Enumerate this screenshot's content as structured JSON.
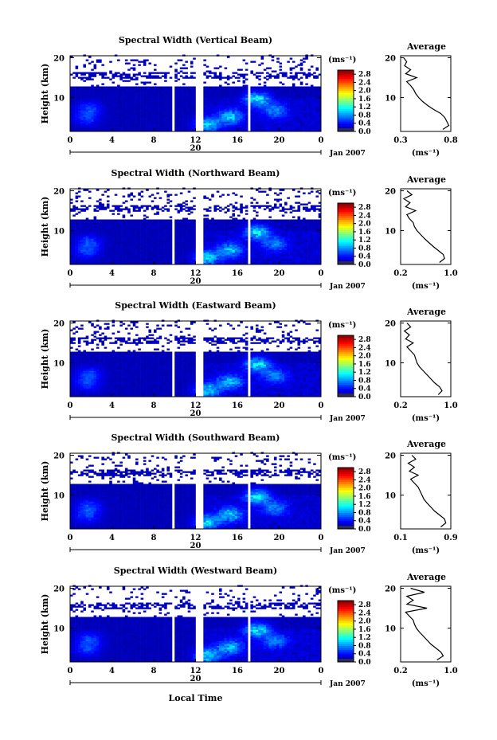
{
  "figure": {
    "xlabel": "Local Time",
    "date_label": "Jan 2007",
    "day_label": "20",
    "cbar_unit": "(ms⁻¹)",
    "avg_title": "Average",
    "avg_xlabel": "(ms⁻¹)"
  },
  "chart_data": [
    {
      "type": "heatmap",
      "title": "Spectral Width (Vertical Beam)",
      "ylabel": "Height (km)",
      "xlabel": "Local Time",
      "x_ticks": [
        "0",
        "4",
        "8",
        "12",
        "16",
        "20",
        "0"
      ],
      "xlim": [
        0,
        24
      ],
      "y_ticks": [
        "10",
        "20"
      ],
      "ylim": [
        1.5,
        20.5
      ],
      "colorbar": {
        "unit": "(ms⁻¹)",
        "ticks": [
          "0.0",
          "0.4",
          "0.8",
          "1.2",
          "1.6",
          "2.0",
          "2.4",
          "2.8"
        ],
        "range": [
          0,
          3.0
        ]
      },
      "data_gaps_hours": [
        [
          9.7,
          10.0
        ],
        [
          12.0,
          12.6
        ],
        [
          17.0,
          17.2
        ]
      ],
      "data_top_km": 12.5,
      "average_profile": {
        "title": "Average",
        "xlabel": "(ms⁻¹)",
        "x_ticks": [
          "0.3",
          "0.8"
        ],
        "xlim": [
          0.3,
          0.8
        ],
        "y_ticks": [
          "10",
          "20"
        ],
        "points": [
          [
            0.72,
            2.0
          ],
          [
            0.78,
            3.0
          ],
          [
            0.76,
            4.0
          ],
          [
            0.74,
            5.0
          ],
          [
            0.7,
            6.0
          ],
          [
            0.63,
            7.0
          ],
          [
            0.57,
            8.0
          ],
          [
            0.52,
            9.0
          ],
          [
            0.48,
            10.0
          ],
          [
            0.45,
            11.0
          ],
          [
            0.43,
            12.0
          ],
          [
            0.4,
            13.0
          ],
          [
            0.36,
            14.0
          ],
          [
            0.46,
            15.0
          ],
          [
            0.35,
            16.0
          ],
          [
            0.4,
            17.0
          ],
          [
            0.34,
            18.0
          ],
          [
            0.36,
            19.0
          ],
          [
            0.33,
            20.0
          ]
        ]
      }
    },
    {
      "type": "heatmap",
      "title": "Spectral Width (Northward Beam)",
      "ylabel": "Height (km)",
      "xlabel": "Local Time",
      "x_ticks": [
        "0",
        "4",
        "8",
        "12",
        "16",
        "20",
        "0"
      ],
      "xlim": [
        0,
        24
      ],
      "y_ticks": [
        "10",
        "20"
      ],
      "ylim": [
        1.5,
        20.5
      ],
      "colorbar": {
        "unit": "(ms⁻¹)",
        "ticks": [
          "0.0",
          "0.4",
          "0.8",
          "1.2",
          "1.6",
          "2.0",
          "2.4",
          "2.8"
        ],
        "range": [
          0,
          3.0
        ]
      },
      "data_gaps_hours": [
        [
          9.7,
          10.0
        ],
        [
          12.0,
          12.6
        ],
        [
          17.0,
          17.2
        ]
      ],
      "data_top_km": 12.5,
      "average_profile": {
        "title": "Average",
        "xlabel": "(ms⁻¹)",
        "x_ticks": [
          "0.2",
          "1.0"
        ],
        "xlim": [
          0.2,
          1.0
        ],
        "y_ticks": [
          "10",
          "20"
        ],
        "points": [
          [
            0.82,
            2.0
          ],
          [
            0.9,
            3.0
          ],
          [
            0.88,
            4.0
          ],
          [
            0.8,
            5.0
          ],
          [
            0.72,
            6.0
          ],
          [
            0.65,
            7.0
          ],
          [
            0.58,
            8.0
          ],
          [
            0.52,
            9.0
          ],
          [
            0.46,
            10.0
          ],
          [
            0.42,
            11.0
          ],
          [
            0.4,
            12.0
          ],
          [
            0.34,
            13.0
          ],
          [
            0.3,
            14.0
          ],
          [
            0.44,
            15.0
          ],
          [
            0.28,
            16.0
          ],
          [
            0.35,
            17.0
          ],
          [
            0.25,
            18.0
          ],
          [
            0.38,
            19.0
          ],
          [
            0.3,
            20.0
          ]
        ]
      }
    },
    {
      "type": "heatmap",
      "title": "Spectral Width (Eastward Beam)",
      "ylabel": "Height (km)",
      "xlabel": "Local Time",
      "x_ticks": [
        "0",
        "4",
        "8",
        "12",
        "16",
        "20",
        "0"
      ],
      "xlim": [
        0,
        24
      ],
      "y_ticks": [
        "10",
        "20"
      ],
      "ylim": [
        1.5,
        20.5
      ],
      "colorbar": {
        "unit": "(ms⁻¹)",
        "ticks": [
          "0.0",
          "0.4",
          "0.8",
          "1.2",
          "1.6",
          "2.0",
          "2.4",
          "2.8"
        ],
        "range": [
          0,
          3.0
        ]
      },
      "data_gaps_hours": [
        [
          9.7,
          10.0
        ],
        [
          12.0,
          12.6
        ],
        [
          17.0,
          17.2
        ]
      ],
      "data_top_km": 12.5,
      "average_profile": {
        "title": "Average",
        "xlabel": "(ms⁻¹)",
        "x_ticks": [
          "0.2",
          "1.0"
        ],
        "xlim": [
          0.2,
          1.0
        ],
        "y_ticks": [
          "10",
          "20"
        ],
        "points": [
          [
            0.8,
            2.0
          ],
          [
            0.86,
            3.0
          ],
          [
            0.82,
            4.0
          ],
          [
            0.74,
            5.0
          ],
          [
            0.68,
            6.0
          ],
          [
            0.62,
            7.0
          ],
          [
            0.56,
            8.0
          ],
          [
            0.5,
            9.0
          ],
          [
            0.46,
            10.0
          ],
          [
            0.44,
            11.0
          ],
          [
            0.42,
            12.0
          ],
          [
            0.36,
            13.0
          ],
          [
            0.3,
            14.0
          ],
          [
            0.4,
            15.0
          ],
          [
            0.28,
            16.0
          ],
          [
            0.34,
            17.0
          ],
          [
            0.26,
            18.0
          ],
          [
            0.36,
            19.0
          ],
          [
            0.3,
            20.0
          ]
        ]
      }
    },
    {
      "type": "heatmap",
      "title": "Spectral Width (Southward Beam)",
      "ylabel": "Height (km)",
      "xlabel": "Local Time",
      "x_ticks": [
        "0",
        "4",
        "8",
        "12",
        "16",
        "20",
        "0"
      ],
      "xlim": [
        0,
        24
      ],
      "y_ticks": [
        "10",
        "20"
      ],
      "ylim": [
        1.5,
        20.5
      ],
      "colorbar": {
        "unit": "(ms⁻¹)",
        "ticks": [
          "0.0",
          "0.4",
          "0.8",
          "1.2",
          "1.6",
          "2.0",
          "2.4",
          "2.8"
        ],
        "range": [
          0,
          3.0
        ]
      },
      "data_gaps_hours": [
        [
          9.7,
          10.0
        ],
        [
          12.0,
          12.6
        ],
        [
          17.0,
          17.2
        ]
      ],
      "data_top_km": 12.5,
      "average_profile": {
        "title": "Average",
        "xlabel": "(ms⁻¹)",
        "x_ticks": [
          "0.1",
          "0.9"
        ],
        "xlim": [
          0.1,
          0.9
        ],
        "y_ticks": [
          "10",
          "20"
        ],
        "points": [
          [
            0.74,
            2.0
          ],
          [
            0.82,
            3.0
          ],
          [
            0.8,
            4.0
          ],
          [
            0.72,
            5.0
          ],
          [
            0.64,
            6.0
          ],
          [
            0.58,
            7.0
          ],
          [
            0.52,
            8.0
          ],
          [
            0.47,
            9.0
          ],
          [
            0.44,
            10.0
          ],
          [
            0.41,
            11.0
          ],
          [
            0.38,
            12.0
          ],
          [
            0.32,
            13.0
          ],
          [
            0.26,
            14.0
          ],
          [
            0.38,
            15.0
          ],
          [
            0.24,
            16.0
          ],
          [
            0.32,
            17.0
          ],
          [
            0.22,
            18.0
          ],
          [
            0.34,
            19.0
          ],
          [
            0.28,
            20.0
          ]
        ]
      }
    },
    {
      "type": "heatmap",
      "title": "Spectral Width (Westward Beam)",
      "ylabel": "Height (km)",
      "xlabel": "Local Time",
      "x_ticks": [
        "0",
        "4",
        "8",
        "12",
        "16",
        "20",
        "0"
      ],
      "xlim": [
        0,
        24
      ],
      "y_ticks": [
        "10",
        "20"
      ],
      "ylim": [
        1.5,
        20.5
      ],
      "colorbar": {
        "unit": "(ms⁻¹)",
        "ticks": [
          "0.0",
          "0.4",
          "0.8",
          "1.2",
          "1.6",
          "2.0",
          "2.4",
          "2.8"
        ],
        "range": [
          0,
          3.0
        ]
      },
      "data_gaps_hours": [
        [
          9.7,
          10.0
        ],
        [
          12.0,
          12.6
        ],
        [
          17.0,
          17.2
        ]
      ],
      "data_top_km": 12.5,
      "average_profile": {
        "title": "Average",
        "xlabel": "(ms⁻¹)",
        "x_ticks": [
          "0.2",
          "1.0"
        ],
        "xlim": [
          0.2,
          1.0
        ],
        "y_ticks": [
          "10",
          "20"
        ],
        "points": [
          [
            0.78,
            2.0
          ],
          [
            0.88,
            3.0
          ],
          [
            0.84,
            4.0
          ],
          [
            0.76,
            5.0
          ],
          [
            0.68,
            6.0
          ],
          [
            0.62,
            7.0
          ],
          [
            0.56,
            8.0
          ],
          [
            0.5,
            9.0
          ],
          [
            0.45,
            10.0
          ],
          [
            0.42,
            11.0
          ],
          [
            0.4,
            12.0
          ],
          [
            0.34,
            13.0
          ],
          [
            0.28,
            14.0
          ],
          [
            0.62,
            15.0
          ],
          [
            0.3,
            16.0
          ],
          [
            0.4,
            17.0
          ],
          [
            0.3,
            18.0
          ],
          [
            0.58,
            19.0
          ],
          [
            0.36,
            20.0
          ]
        ]
      }
    }
  ]
}
